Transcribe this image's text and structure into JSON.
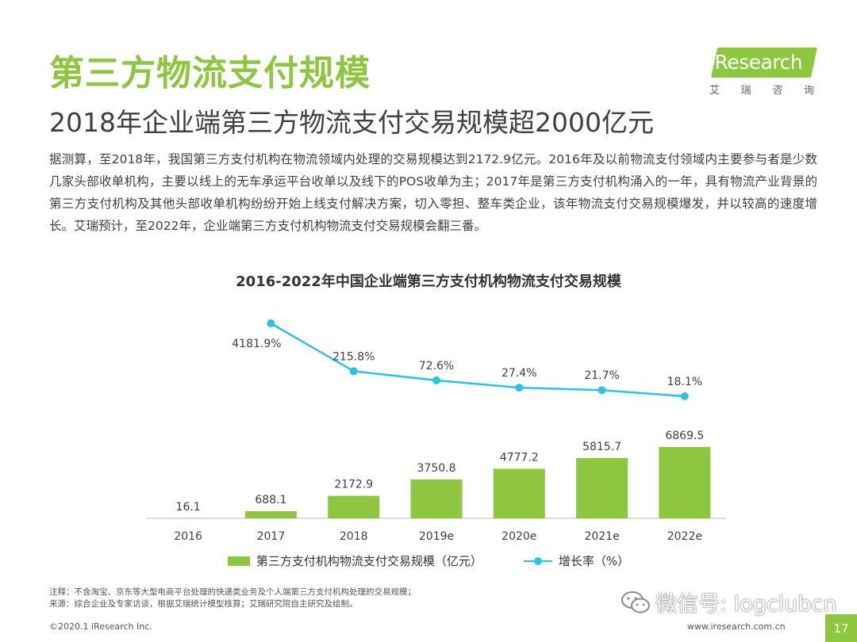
{
  "header": {
    "title": "第三方物流支付规模",
    "subtitle": "2018年企业端第三方物流支付交易规模超2000亿元"
  },
  "logo": {
    "text": "iResearch",
    "subtitle_chars": [
      "艾",
      "瑞",
      "咨",
      "询"
    ]
  },
  "body_text": "据测算，至2018年，我国第三方支付机构在物流领域内处理的交易规模达到2172.9亿元。2016年及以前物流支付领域内主要参与者是少数几家头部收单机构，主要以线上的无车承运平台收单以及线下的POS收单为主；2017年是第三方支付机构涌入的一年，具有物流产业背景的第三方支付机构及其他头部收单机构纷纷开始上线支付解决方案，切入零担、整车类企业，该年物流支付交易规模爆发，并以较高的速度增长。艾瑞预计，至2022年，企业端第三方支付机构物流支付交易规模会翻三番。",
  "chart_data": {
    "type": "bar",
    "title": "2016-2022年中国企业端第三方支付机构物流支付交易规模",
    "categories": [
      "2016",
      "2017",
      "2018",
      "2019e",
      "2020e",
      "2021e",
      "2022e"
    ],
    "series": [
      {
        "name": "第三方支付机构物流支付交易规模（亿元）",
        "type": "bar",
        "values": [
          16.1,
          688.1,
          2172.9,
          3750.8,
          4777.2,
          5815.7,
          6869.5
        ],
        "labels": [
          "16.1",
          "688.1",
          "2172.9",
          "3750.8",
          "4777.2",
          "5815.7",
          "6869.5"
        ]
      },
      {
        "name": "增长率（%）",
        "type": "line",
        "values": [
          null,
          4181.9,
          215.8,
          72.6,
          27.4,
          21.7,
          18.1
        ],
        "labels": [
          "",
          "4181.9%",
          "215.8%",
          "72.6%",
          "27.4%",
          "21.7%",
          "18.1%"
        ]
      }
    ],
    "xlabel": "",
    "ylabel": "",
    "grid": false
  },
  "colors": {
    "accent": "#8dc63f",
    "line": "#29c3e8"
  },
  "notes": [
    "注释：不含淘宝、京东等大型电商平台处理的快递类业务及个人端第三方支付机构处理的交易规模；",
    "来源：综合企业及专家访谈，根据艾瑞统计模型核算；艾瑞研究院自主研究及绘制。"
  ],
  "footer": {
    "copyright": "©2020.1 iResearch Inc.",
    "website": "www.iresearch.com.cn",
    "page": "17"
  },
  "watermark": {
    "text": "微信号: logclubcn",
    "icon": "wechat-icon"
  }
}
